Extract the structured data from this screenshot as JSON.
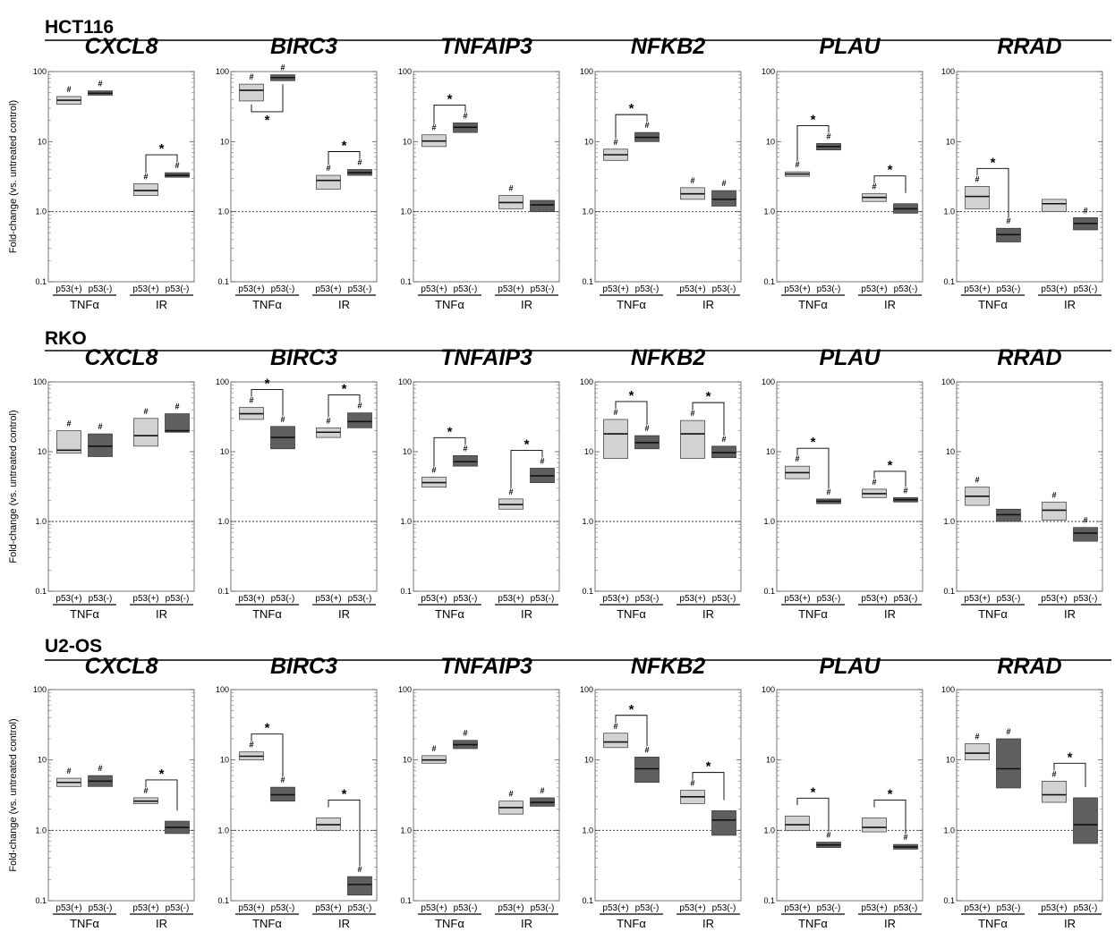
{
  "chart_data": {
    "type": "box",
    "ylabel": "Fold-change (vs. untreated control)",
    "y_scale": "log",
    "ylim": [
      0.1,
      100
    ],
    "y_ticks": [
      "100",
      "10",
      "1.0",
      "0.1"
    ],
    "reference_line": 1.0,
    "genes": [
      "CXCL8",
      "BIRC3",
      "TNFAIP3",
      "NFKB2",
      "PLAU",
      "RRAD"
    ],
    "x_labels": [
      "p53(+)",
      "p53(-)",
      "p53(+)",
      "p53(-)"
    ],
    "groups": [
      "TNFα",
      "IR"
    ],
    "colors": {
      "p53_pos": "#d2d2d2",
      "p53_neg": "#5f5f5f",
      "median": "#111111"
    },
    "significance_markers": [
      "#",
      "*"
    ],
    "panels": [
      {
        "cell_line": "HCT116",
        "plots": [
          {
            "gene": "CXCL8",
            "boxes": [
              [
                34,
                44,
                39,
                "#"
              ],
              [
                46,
                53,
                49,
                "#"
              ],
              [
                1.7,
                2.5,
                2.0,
                "#"
              ],
              [
                3.1,
                3.6,
                3.3,
                "#"
              ]
            ],
            "stars": [
              [
                2,
                3,
                "above"
              ]
            ]
          },
          {
            "gene": "BIRC3",
            "boxes": [
              [
                38,
                66,
                54,
                "#"
              ],
              [
                74,
                90,
                82,
                "#"
              ],
              [
                2.1,
                3.3,
                2.8,
                "#"
              ],
              [
                3.3,
                4.0,
                3.6,
                "#"
              ]
            ],
            "stars": [
              [
                0,
                1,
                "below"
              ],
              [
                2,
                3,
                "above"
              ]
            ]
          },
          {
            "gene": "TNFAIP3",
            "boxes": [
              [
                8.5,
                12.5,
                10.2,
                "#"
              ],
              [
                13.5,
                18.5,
                16,
                "#"
              ],
              [
                1.1,
                1.7,
                1.35,
                "#"
              ],
              [
                1.0,
                1.45,
                1.25,
                ""
              ]
            ],
            "stars": [
              [
                0,
                1,
                "above"
              ]
            ]
          },
          {
            "gene": "NFKB2",
            "boxes": [
              [
                5.4,
                7.8,
                6.5,
                "#"
              ],
              [
                10,
                13.5,
                11.5,
                "#"
              ],
              [
                1.5,
                2.2,
                1.8,
                "#"
              ],
              [
                1.2,
                2.0,
                1.5,
                "#"
              ]
            ],
            "stars": [
              [
                0,
                1,
                "above"
              ]
            ]
          },
          {
            "gene": "PLAU",
            "boxes": [
              [
                3.2,
                3.7,
                3.45,
                "#"
              ],
              [
                7.6,
                9.4,
                8.5,
                "#"
              ],
              [
                1.4,
                1.8,
                1.6,
                "#"
              ],
              [
                0.95,
                1.3,
                1.1,
                ""
              ]
            ],
            "stars": [
              [
                0,
                1,
                "above"
              ],
              [
                2,
                3,
                "above"
              ]
            ]
          },
          {
            "gene": "RRAD",
            "boxes": [
              [
                1.1,
                2.3,
                1.65,
                "#"
              ],
              [
                0.37,
                0.58,
                0.47,
                "#"
              ],
              [
                1.0,
                1.5,
                1.3,
                ""
              ],
              [
                0.55,
                0.82,
                0.68,
                "#"
              ]
            ],
            "stars": [
              [
                0,
                1,
                "above"
              ]
            ]
          }
        ]
      },
      {
        "cell_line": "RKO",
        "plots": [
          {
            "gene": "CXCL8",
            "boxes": [
              [
                9.5,
                20,
                10.5,
                "#"
              ],
              [
                8.5,
                18,
                12,
                "#"
              ],
              [
                12,
                30,
                17,
                "#"
              ],
              [
                19,
                35,
                20,
                "#"
              ]
            ],
            "stars": []
          },
          {
            "gene": "BIRC3",
            "boxes": [
              [
                29,
                43,
                35,
                "#"
              ],
              [
                11,
                23,
                16,
                "#"
              ],
              [
                16,
                22,
                19,
                "#"
              ],
              [
                22,
                36,
                27,
                "#"
              ]
            ],
            "stars": [
              [
                0,
                1,
                "above"
              ],
              [
                2,
                3,
                "above"
              ]
            ]
          },
          {
            "gene": "TNFAIP3",
            "boxes": [
              [
                3.1,
                4.3,
                3.6,
                "#"
              ],
              [
                6.2,
                8.8,
                7.2,
                "#"
              ],
              [
                1.5,
                2.1,
                1.75,
                "#"
              ],
              [
                3.6,
                5.8,
                4.5,
                "#"
              ]
            ],
            "stars": [
              [
                0,
                1,
                "above"
              ],
              [
                2,
                3,
                "above"
              ]
            ]
          },
          {
            "gene": "NFKB2",
            "boxes": [
              [
                8,
                29,
                18,
                "#"
              ],
              [
                11,
                17,
                13.5,
                "#"
              ],
              [
                8,
                28,
                18,
                "#"
              ],
              [
                8.2,
                12,
                9.7,
                "#"
              ]
            ],
            "stars": [
              [
                0,
                1,
                "above"
              ],
              [
                2,
                3,
                "above"
              ]
            ]
          },
          {
            "gene": "PLAU",
            "boxes": [
              [
                4.1,
                6.2,
                5,
                "#"
              ],
              [
                1.8,
                2.1,
                1.95,
                "#"
              ],
              [
                2.2,
                2.9,
                2.5,
                "#"
              ],
              [
                1.9,
                2.2,
                2.05,
                "#"
              ]
            ],
            "stars": [
              [
                0,
                1,
                "above"
              ],
              [
                2,
                3,
                "above"
              ]
            ]
          },
          {
            "gene": "RRAD",
            "boxes": [
              [
                1.7,
                3.1,
                2.3,
                "#"
              ],
              [
                1.0,
                1.5,
                1.25,
                ""
              ],
              [
                1.05,
                1.9,
                1.45,
                "#"
              ],
              [
                0.52,
                0.82,
                0.68,
                "#"
              ]
            ],
            "stars": []
          }
        ]
      },
      {
        "cell_line": "U2-OS",
        "plots": [
          {
            "gene": "CXCL8",
            "boxes": [
              [
                4.2,
                5.5,
                4.8,
                "#"
              ],
              [
                4.2,
                6.0,
                5.0,
                "#"
              ],
              [
                2.4,
                2.9,
                2.6,
                "#"
              ],
              [
                0.9,
                1.35,
                1.1,
                ""
              ]
            ],
            "stars": [
              [
                2,
                3,
                "above"
              ]
            ]
          },
          {
            "gene": "BIRC3",
            "boxes": [
              [
                10,
                13,
                11.3,
                "#"
              ],
              [
                2.6,
                4.1,
                3.2,
                "#"
              ],
              [
                1.0,
                1.5,
                1.2,
                ""
              ],
              [
                0.12,
                0.22,
                0.17,
                "#"
              ]
            ],
            "stars": [
              [
                0,
                1,
                "above"
              ],
              [
                2,
                3,
                "above"
              ]
            ]
          },
          {
            "gene": "TNFAIP3",
            "boxes": [
              [
                9,
                11.5,
                10,
                "#"
              ],
              [
                14.5,
                19,
                16.5,
                "#"
              ],
              [
                1.7,
                2.6,
                2.1,
                "#"
              ],
              [
                2.2,
                2.9,
                2.5,
                "#"
              ]
            ],
            "stars": []
          },
          {
            "gene": "NFKB2",
            "boxes": [
              [
                15,
                24,
                18,
                "#"
              ],
              [
                4.8,
                11,
                7.5,
                "#"
              ],
              [
                2.4,
                3.7,
                3.0,
                "#"
              ],
              [
                0.85,
                1.9,
                1.4,
                ""
              ]
            ],
            "stars": [
              [
                0,
                1,
                "above"
              ],
              [
                2,
                3,
                "above"
              ]
            ]
          },
          {
            "gene": "PLAU",
            "boxes": [
              [
                1.0,
                1.6,
                1.2,
                ""
              ],
              [
                0.57,
                0.68,
                0.62,
                "#"
              ],
              [
                0.95,
                1.5,
                1.1,
                ""
              ],
              [
                0.54,
                0.63,
                0.58,
                "#"
              ]
            ],
            "stars": [
              [
                0,
                1,
                "above"
              ],
              [
                2,
                3,
                "above"
              ]
            ]
          },
          {
            "gene": "RRAD",
            "boxes": [
              [
                10,
                17,
                12.5,
                "#"
              ],
              [
                4,
                20,
                7.5,
                "#"
              ],
              [
                2.5,
                5,
                3.2,
                "#"
              ],
              [
                0.65,
                2.9,
                1.2,
                ""
              ]
            ],
            "stars": [
              [
                2,
                3,
                "above"
              ]
            ]
          }
        ]
      }
    ]
  }
}
